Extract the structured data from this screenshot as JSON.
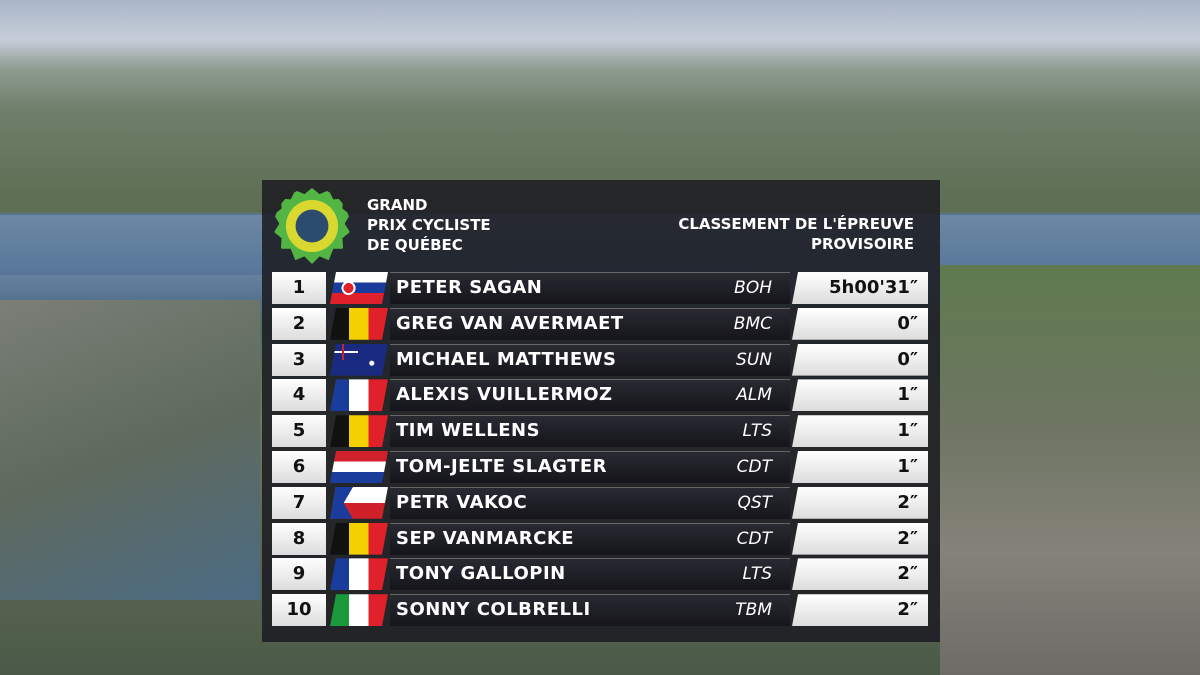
{
  "header": {
    "event_name": [
      "GRAND",
      "PRIX CYCLISTE",
      "DE QUÉBEC"
    ],
    "title": [
      "CLASSEMENT DE L'ÉPREUVE",
      "PROVISOIRE"
    ]
  },
  "table": {
    "rows": [
      [
        "1",
        "PETER SAGAN",
        "BOH",
        "5h00'31″"
      ],
      [
        "2",
        "GREG VAN AVERMAET",
        "BMC",
        "0″"
      ],
      [
        "3",
        "MICHAEL MATTHEWS",
        "SUN",
        "0″"
      ],
      [
        "4",
        "ALEXIS VUILLERMOZ",
        "ALM",
        "1″"
      ],
      [
        "5",
        "TIM WELLENS",
        "LTS",
        "1″"
      ],
      [
        "6",
        "TOM-JELTE SLAGTER",
        "CDT",
        "1″"
      ],
      [
        "7",
        "PETR VAKOC",
        "QST",
        "2″"
      ],
      [
        "8",
        "SEP VANMARCKE",
        "CDT",
        "2″"
      ],
      [
        "9",
        "TONY GALLOPIN",
        "LTS",
        "2″"
      ],
      [
        "10",
        "SONNY COLBRELLI",
        "TBM",
        "2″"
      ]
    ]
  }
}
